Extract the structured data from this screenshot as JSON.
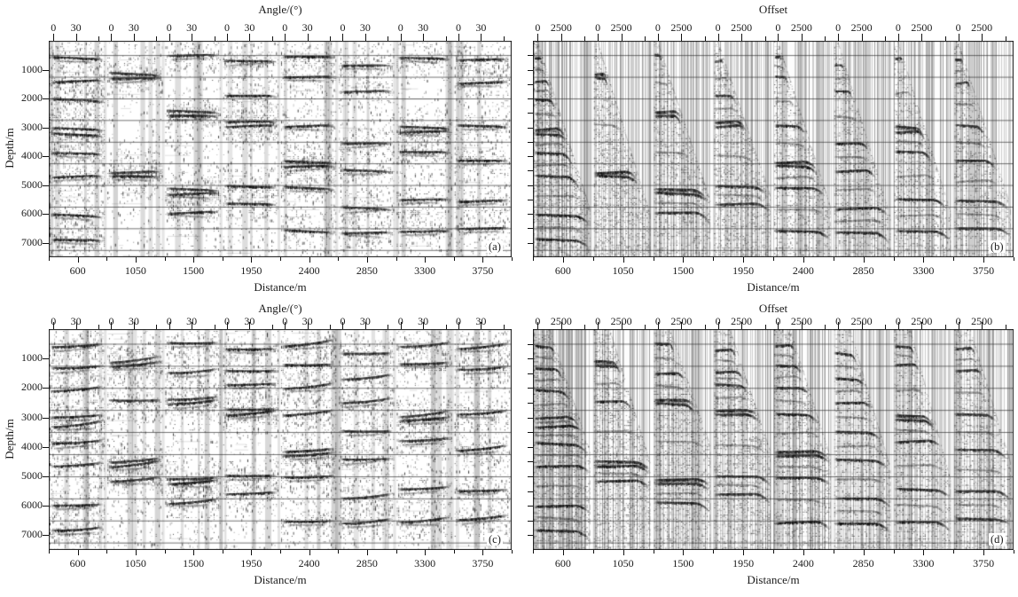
{
  "figure": {
    "background_color": "#ffffff",
    "ink_color": "#1a1a1a",
    "description": "Four-panel seismic common-image-gather figure: angle gathers (a,c) and offset gathers (b,d)"
  },
  "chart_data": [
    {
      "id": "a",
      "corner_label": "(a)",
      "type": "seismic_angle_gather_panel",
      "top_axis": {
        "title": "Angle/(°)",
        "tick_labels": [
          "0",
          "30"
        ],
        "range_deg": [
          0,
          65
        ]
      },
      "bottom_axis": {
        "title": "Distance/m",
        "tick_labels": [
          "600",
          "1050",
          "1500",
          "1950",
          "2400",
          "2850",
          "3300",
          "3750"
        ]
      },
      "left_axis": {
        "title": "Depth/m",
        "tick_labels": [
          "1000",
          "2000",
          "3000",
          "4000",
          "5000",
          "6000",
          "7000"
        ],
        "range_m": [
          0,
          7500
        ],
        "tick_interval_m": 1000
      },
      "grid_line_depths_m": [
        500,
        1250,
        2000,
        2750,
        3500,
        4250,
        5000,
        5750,
        6500,
        7250
      ],
      "event_curl": 1,
      "groups": [
        {
          "distance_m": 600,
          "noise": 0.95,
          "event_depths_m": [
            600,
            1400,
            2050,
            3050,
            3250,
            3900,
            4700,
            6050,
            6900
          ]
        },
        {
          "distance_m": 1050,
          "noise": 0.5,
          "event_depths_m": [
            1150,
            1300,
            4550,
            4700
          ]
        },
        {
          "distance_m": 1500,
          "noise": 0.45,
          "event_depths_m": [
            500,
            2450,
            2600,
            5150,
            5300,
            5950
          ]
        },
        {
          "distance_m": 1950,
          "noise": 0.55,
          "event_depths_m": [
            700,
            1900,
            2800,
            2950,
            5050,
            5650
          ]
        },
        {
          "distance_m": 2400,
          "noise": 0.45,
          "event_depths_m": [
            550,
            1250,
            2950,
            4200,
            4350,
            5100,
            6600
          ]
        },
        {
          "distance_m": 2850,
          "noise": 0.55,
          "event_depths_m": [
            850,
            1750,
            3550,
            4500,
            5800,
            6650
          ]
        },
        {
          "distance_m": 3300,
          "noise": 0.5,
          "event_depths_m": [
            600,
            3000,
            3150,
            3850,
            5500,
            6600
          ]
        },
        {
          "distance_m": 3750,
          "noise": 0.55,
          "event_depths_m": [
            650,
            1450,
            2950,
            4150,
            5550,
            6500
          ]
        }
      ]
    },
    {
      "id": "b",
      "corner_label": "(b)",
      "type": "seismic_offset_gather_panel",
      "top_axis": {
        "title": "Offset",
        "tick_labels": [
          "0",
          "2500"
        ],
        "range_m": [
          0,
          5500
        ]
      },
      "bottom_axis": {
        "title": "Distance/m",
        "tick_labels": [
          "600",
          "1050",
          "1500",
          "1950",
          "2400",
          "2850",
          "3300",
          "3750"
        ]
      },
      "left_axis": {
        "title": "",
        "tick_labels": [],
        "range_m": [
          0,
          7500
        ],
        "tick_interval_m": 500
      },
      "grid_line_depths_m": [
        500,
        1250,
        2000,
        2750,
        3500,
        4250,
        5000,
        5750,
        6500,
        7250
      ],
      "event_curl": 6,
      "wedge_top_frac": 0.07,
      "groups": [
        {
          "distance_m": 600,
          "noise": 1.0,
          "mute_full_depth_m": 6000,
          "event_depths_m": [
            600,
            1400,
            2050,
            3050,
            3250,
            3900,
            4700,
            6050,
            6900
          ]
        },
        {
          "distance_m": 1050,
          "noise": 0.9,
          "mute_full_depth_m": 6200,
          "event_depths_m": [
            1150,
            1300,
            4550,
            4700
          ]
        },
        {
          "distance_m": 1500,
          "noise": 0.75,
          "mute_full_depth_m": 5700,
          "event_depths_m": [
            500,
            2450,
            2600,
            5150,
            5300,
            5950
          ]
        },
        {
          "distance_m": 1950,
          "noise": 0.8,
          "mute_full_depth_m": 5500,
          "event_depths_m": [
            700,
            1900,
            2800,
            2950,
            5050,
            5650
          ]
        },
        {
          "distance_m": 2400,
          "noise": 0.7,
          "mute_full_depth_m": 5900,
          "event_depths_m": [
            550,
            1250,
            2950,
            4200,
            4350,
            5100,
            6600
          ]
        },
        {
          "distance_m": 2850,
          "noise": 0.65,
          "mute_full_depth_m": 6300,
          "event_depths_m": [
            850,
            1750,
            3550,
            4500,
            5800,
            6650
          ]
        },
        {
          "distance_m": 3300,
          "noise": 0.6,
          "mute_full_depth_m": 6100,
          "event_depths_m": [
            600,
            3000,
            3150,
            3850,
            5500,
            6600
          ]
        },
        {
          "distance_m": 3750,
          "noise": 0.65,
          "mute_full_depth_m": 5900,
          "event_depths_m": [
            650,
            1450,
            2950,
            4150,
            5550,
            6500
          ]
        }
      ]
    },
    {
      "id": "c",
      "corner_label": "(c)",
      "type": "seismic_angle_gather_panel",
      "top_axis": {
        "title": "Angle/(°)",
        "tick_labels": [
          "0",
          "30"
        ],
        "range_deg": [
          0,
          65
        ]
      },
      "bottom_axis": {
        "title": "Distance/m",
        "tick_labels": [
          "600",
          "1050",
          "1500",
          "1950",
          "2400",
          "2850",
          "3300",
          "3750"
        ]
      },
      "left_axis": {
        "title": "Depth/m",
        "tick_labels": [
          "1000",
          "2000",
          "3000",
          "4000",
          "5000",
          "6000",
          "7000"
        ],
        "range_m": [
          0,
          7500
        ],
        "tick_interval_m": 1000
      },
      "grid_line_depths_m": [
        500,
        1250,
        2000,
        2750,
        3500,
        4250,
        5000,
        5750,
        6500,
        7250
      ],
      "event_curl": -4,
      "groups": [
        {
          "distance_m": 600,
          "noise": 0.8,
          "event_depths_m": [
            600,
            1350,
            2100,
            3000,
            3300,
            3900,
            4650,
            6000,
            6850
          ]
        },
        {
          "distance_m": 1050,
          "noise": 0.7,
          "event_depths_m": [
            1100,
            1250,
            2450,
            4500,
            4650,
            5150
          ]
        },
        {
          "distance_m": 1500,
          "noise": 0.6,
          "event_depths_m": [
            500,
            1500,
            2400,
            2550,
            5100,
            5250,
            5900
          ]
        },
        {
          "distance_m": 1950,
          "noise": 0.6,
          "event_depths_m": [
            700,
            1450,
            1900,
            2750,
            2900,
            5000,
            5600
          ]
        },
        {
          "distance_m": 2400,
          "noise": 0.65,
          "event_depths_m": [
            550,
            1250,
            2000,
            2900,
            4150,
            4300,
            5050,
            6550
          ]
        },
        {
          "distance_m": 2850,
          "noise": 0.6,
          "event_depths_m": [
            850,
            1700,
            2500,
            3500,
            4450,
            5750,
            6600
          ]
        },
        {
          "distance_m": 3300,
          "noise": 0.55,
          "event_depths_m": [
            600,
            1200,
            2950,
            3100,
            3800,
            5450,
            6550
          ]
        },
        {
          "distance_m": 3750,
          "noise": 0.6,
          "event_depths_m": [
            650,
            1400,
            2900,
            4100,
            5500,
            6450
          ]
        }
      ]
    },
    {
      "id": "d",
      "corner_label": "(d)",
      "type": "seismic_offset_gather_panel",
      "top_axis": {
        "title": "Offset",
        "tick_labels": [
          "0",
          "2500"
        ],
        "range_m": [
          0,
          5500
        ]
      },
      "bottom_axis": {
        "title": "Distance/m",
        "tick_labels": [
          "600",
          "1050",
          "1500",
          "1950",
          "2400",
          "2850",
          "3300",
          "3750"
        ]
      },
      "left_axis": {
        "title": "",
        "tick_labels": [],
        "range_m": [
          0,
          7500
        ],
        "tick_interval_m": 500
      },
      "grid_line_depths_m": [
        500,
        1250,
        2000,
        2750,
        3500,
        4250,
        5000,
        5750,
        6500,
        7250
      ],
      "event_curl": 5,
      "wedge_top_frac": 0.28,
      "groups": [
        {
          "distance_m": 600,
          "noise": 0.9,
          "mute_full_depth_m": 4300,
          "event_depths_m": [
            600,
            1350,
            2100,
            3000,
            3300,
            3900,
            4650,
            6000,
            6850
          ]
        },
        {
          "distance_m": 1050,
          "noise": 0.85,
          "mute_full_depth_m": 4700,
          "event_depths_m": [
            1100,
            1250,
            2450,
            4500,
            4650,
            5150
          ]
        },
        {
          "distance_m": 1500,
          "noise": 0.75,
          "mute_full_depth_m": 4100,
          "event_depths_m": [
            500,
            1500,
            2400,
            2550,
            5100,
            5250,
            5900
          ]
        },
        {
          "distance_m": 1950,
          "noise": 0.8,
          "mute_full_depth_m": 4300,
          "event_depths_m": [
            700,
            1450,
            1900,
            2750,
            2900,
            5000,
            5600
          ]
        },
        {
          "distance_m": 2400,
          "noise": 0.7,
          "mute_full_depth_m": 4500,
          "event_depths_m": [
            550,
            1250,
            2000,
            2900,
            4150,
            4300,
            5050,
            6550
          ]
        },
        {
          "distance_m": 2850,
          "noise": 0.65,
          "mute_full_depth_m": 4900,
          "event_depths_m": [
            850,
            1700,
            2500,
            3500,
            4450,
            5750,
            6600
          ]
        },
        {
          "distance_m": 3300,
          "noise": 0.6,
          "mute_full_depth_m": 5300,
          "event_depths_m": [
            600,
            1200,
            2950,
            3100,
            3800,
            5450,
            6550
          ]
        },
        {
          "distance_m": 3750,
          "noise": 0.65,
          "mute_full_depth_m": 4700,
          "event_depths_m": [
            650,
            1400,
            2900,
            4100,
            5500,
            6450
          ]
        }
      ]
    }
  ]
}
